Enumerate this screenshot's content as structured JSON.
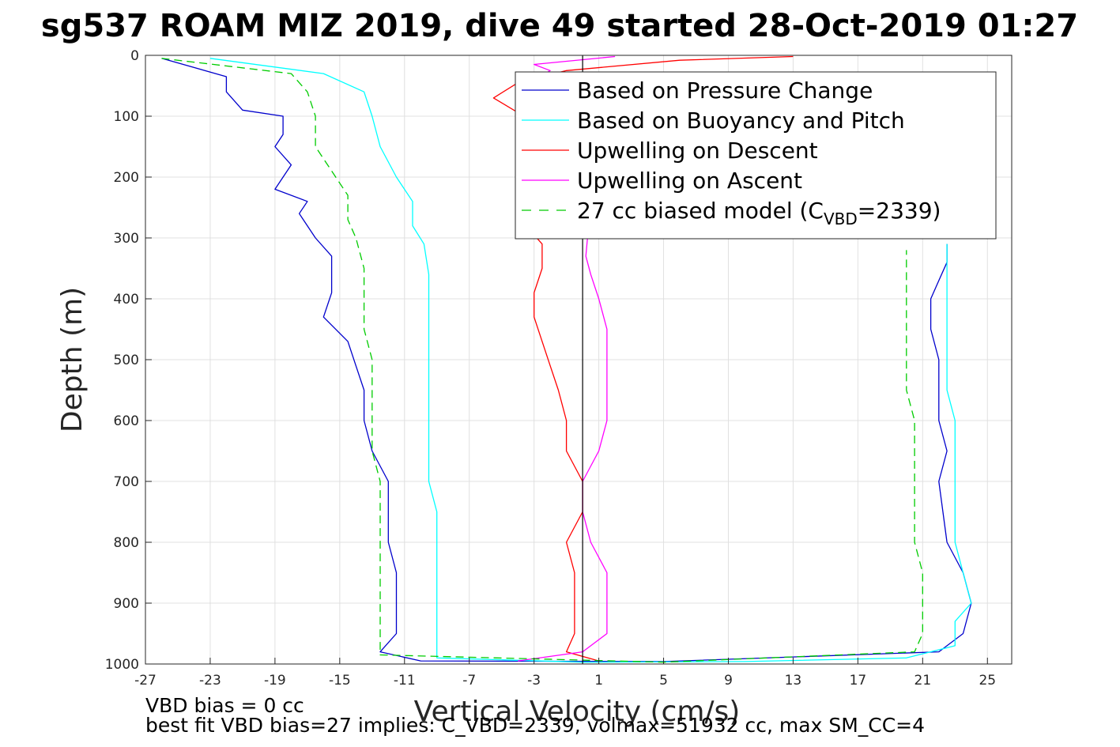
{
  "chart_data": {
    "type": "line",
    "title": "sg537 ROAM MIZ 2019, dive 49 started 28-Oct-2019 01:27",
    "xlabel": "Vertical Velocity (cm/s)",
    "ylabel": "Depth (m)",
    "xlim": [
      -27,
      26.5
    ],
    "ylim": [
      0,
      1000
    ],
    "y_reversed": true,
    "grid": true,
    "xticks": [
      -27,
      -23,
      -19,
      -15,
      -11,
      -7,
      -3,
      1,
      5,
      9,
      13,
      17,
      21,
      25
    ],
    "yticks": [
      0,
      100,
      200,
      300,
      400,
      500,
      600,
      700,
      800,
      900,
      1000
    ],
    "zero_line_x": 0,
    "legend": {
      "placement": "top-right",
      "entries": [
        {
          "label": "Based on Pressure Change",
          "color": "#0000cc",
          "style": "solid"
        },
        {
          "label": "Based on Buoyancy and Pitch",
          "color": "#00ffff",
          "style": "solid"
        },
        {
          "label": "Upwelling on Descent",
          "color": "#ff0000",
          "style": "solid"
        },
        {
          "label": "Upwelling on Ascent",
          "color": "#ff00ff",
          "style": "solid"
        },
        {
          "label_prefix": "27 cc biased model (C",
          "label_sub": "VBD",
          "label_suffix": "=2339)",
          "color": "#00cc00",
          "style": "dashed"
        }
      ]
    },
    "series": [
      {
        "name": "Based on Pressure Change",
        "color": "#0000cc",
        "dashed": false,
        "points": [
          [
            -26,
            5
          ],
          [
            -22,
            35
          ],
          [
            -22,
            60
          ],
          [
            -21,
            90
          ],
          [
            -18.5,
            100
          ],
          [
            -18.5,
            130
          ],
          [
            -19,
            150
          ],
          [
            -18,
            180
          ],
          [
            -19,
            220
          ],
          [
            -17,
            240
          ],
          [
            -17.5,
            260
          ],
          [
            -16.5,
            300
          ],
          [
            -15.5,
            330
          ],
          [
            -15.5,
            370
          ],
          [
            -15.5,
            390
          ],
          [
            -16,
            430
          ],
          [
            -14.5,
            470
          ],
          [
            -14,
            510
          ],
          [
            -13.5,
            550
          ],
          [
            -13.5,
            600
          ],
          [
            -13,
            650
          ],
          [
            -12,
            700
          ],
          [
            -12,
            750
          ],
          [
            -12,
            800
          ],
          [
            -11.5,
            850
          ],
          [
            -11.5,
            900
          ],
          [
            -11.5,
            950
          ],
          [
            -12.5,
            980
          ],
          [
            -10,
            995
          ],
          [
            5,
            996
          ],
          [
            22,
            980
          ],
          [
            23.5,
            950
          ],
          [
            24,
            900
          ],
          [
            23.5,
            850
          ],
          [
            22.5,
            800
          ],
          [
            22,
            700
          ],
          [
            22.5,
            650
          ],
          [
            22,
            600
          ],
          [
            22,
            550
          ],
          [
            22,
            500
          ],
          [
            21.5,
            450
          ],
          [
            21.5,
            400
          ],
          [
            22,
            370
          ],
          [
            22.5,
            340
          ],
          [
            22.5,
            310
          ]
        ]
      },
      {
        "name": "Based on Buoyancy and Pitch",
        "color": "#00ffff",
        "dashed": false,
        "points": [
          [
            -23,
            5
          ],
          [
            -16,
            30
          ],
          [
            -13.5,
            60
          ],
          [
            -13,
            100
          ],
          [
            -12.5,
            150
          ],
          [
            -11.5,
            200
          ],
          [
            -10.5,
            240
          ],
          [
            -10.5,
            280
          ],
          [
            -9.8,
            310
          ],
          [
            -9.5,
            360
          ],
          [
            -9.5,
            400
          ],
          [
            -9.5,
            450
          ],
          [
            -9.5,
            500
          ],
          [
            -9.5,
            550
          ],
          [
            -9.5,
            600
          ],
          [
            -9.5,
            650
          ],
          [
            -9.5,
            700
          ],
          [
            -9,
            750
          ],
          [
            -9,
            800
          ],
          [
            -9,
            850
          ],
          [
            -9,
            900
          ],
          [
            -9,
            950
          ],
          [
            -9,
            990
          ],
          [
            0,
            997
          ],
          [
            10,
            996
          ],
          [
            20,
            990
          ],
          [
            23,
            970
          ],
          [
            23,
            930
          ],
          [
            24,
            900
          ],
          [
            23.5,
            850
          ],
          [
            23,
            800
          ],
          [
            23,
            750
          ],
          [
            23,
            700
          ],
          [
            23,
            650
          ],
          [
            23,
            600
          ],
          [
            22.5,
            550
          ],
          [
            22.5,
            500
          ],
          [
            22.5,
            450
          ],
          [
            22.5,
            410
          ],
          [
            22.5,
            370
          ],
          [
            22.5,
            335
          ],
          [
            22.5,
            310
          ]
        ]
      },
      {
        "name": "Upwelling on Descent",
        "color": "#ff0000",
        "dashed": false,
        "points": [
          [
            13,
            2
          ],
          [
            6,
            8
          ],
          [
            -1,
            25
          ],
          [
            -4,
            45
          ],
          [
            -5.5,
            70
          ],
          [
            -3,
            110
          ],
          [
            -3.5,
            150
          ],
          [
            -3.5,
            200
          ],
          [
            -3.5,
            240
          ],
          [
            -3.5,
            280
          ],
          [
            -2.5,
            310
          ],
          [
            -2.5,
            350
          ],
          [
            -3,
            390
          ],
          [
            -3,
            430
          ],
          [
            -2.5,
            470
          ],
          [
            -2,
            510
          ],
          [
            -1.5,
            550
          ],
          [
            -1,
            600
          ],
          [
            -1,
            650
          ],
          [
            0,
            700
          ],
          [
            0,
            750
          ],
          [
            -1,
            800
          ],
          [
            -0.5,
            850
          ],
          [
            -0.5,
            900
          ],
          [
            -0.5,
            950
          ],
          [
            -1,
            980
          ],
          [
            1,
            995
          ]
        ]
      },
      {
        "name": "Upwelling on Ascent",
        "color": "#ff00ff",
        "dashed": false,
        "points": [
          [
            2,
            2
          ],
          [
            -3,
            15
          ],
          [
            -2,
            25
          ],
          [
            -3,
            40
          ],
          [
            0,
            60
          ],
          [
            1,
            100
          ],
          [
            0.5,
            150
          ],
          [
            0.5,
            200
          ],
          [
            0.5,
            240
          ],
          [
            0.5,
            280
          ],
          [
            0.3,
            300
          ],
          [
            0.2,
            330
          ],
          [
            0.5,
            360
          ],
          [
            1,
            400
          ],
          [
            1.5,
            450
          ],
          [
            1.5,
            500
          ],
          [
            1.5,
            550
          ],
          [
            1.5,
            600
          ],
          [
            1,
            650
          ],
          [
            0,
            700
          ],
          [
            0,
            750
          ],
          [
            0.5,
            800
          ],
          [
            1.5,
            850
          ],
          [
            1.5,
            900
          ],
          [
            1.5,
            950
          ],
          [
            0,
            980
          ],
          [
            -4,
            995
          ]
        ]
      },
      {
        "name": "27 cc biased model (CVBD=2339)",
        "color": "#00cc00",
        "dashed": true,
        "points": [
          [
            -26,
            5
          ],
          [
            -18,
            30
          ],
          [
            -17,
            60
          ],
          [
            -16.5,
            100
          ],
          [
            -16.5,
            150
          ],
          [
            -15.5,
            190
          ],
          [
            -14.5,
            230
          ],
          [
            -14.5,
            270
          ],
          [
            -14,
            300
          ],
          [
            -13.5,
            350
          ],
          [
            -13.5,
            400
          ],
          [
            -13.5,
            450
          ],
          [
            -13,
            500
          ],
          [
            -13,
            550
          ],
          [
            -13,
            600
          ],
          [
            -13,
            650
          ],
          [
            -12.5,
            700
          ],
          [
            -12.5,
            750
          ],
          [
            -12.5,
            800
          ],
          [
            -12.5,
            850
          ],
          [
            -12.5,
            900
          ],
          [
            -12.5,
            950
          ],
          [
            -12.5,
            985
          ],
          [
            5,
            997
          ],
          [
            20.5,
            980
          ],
          [
            21,
            950
          ],
          [
            21,
            900
          ],
          [
            21,
            850
          ],
          [
            20.5,
            800
          ],
          [
            20.5,
            700
          ],
          [
            20.5,
            650
          ],
          [
            20.5,
            600
          ],
          [
            20,
            550
          ],
          [
            20,
            500
          ],
          [
            20,
            450
          ],
          [
            20,
            400
          ],
          [
            20,
            350
          ],
          [
            20,
            320
          ]
        ]
      }
    ]
  },
  "footer": {
    "vbd_bias": "VBD bias = 0 cc",
    "best_fit": "best fit VBD bias=27 implies: C_VBD=2339, volmax=51932 cc, max SM_CC=4"
  }
}
